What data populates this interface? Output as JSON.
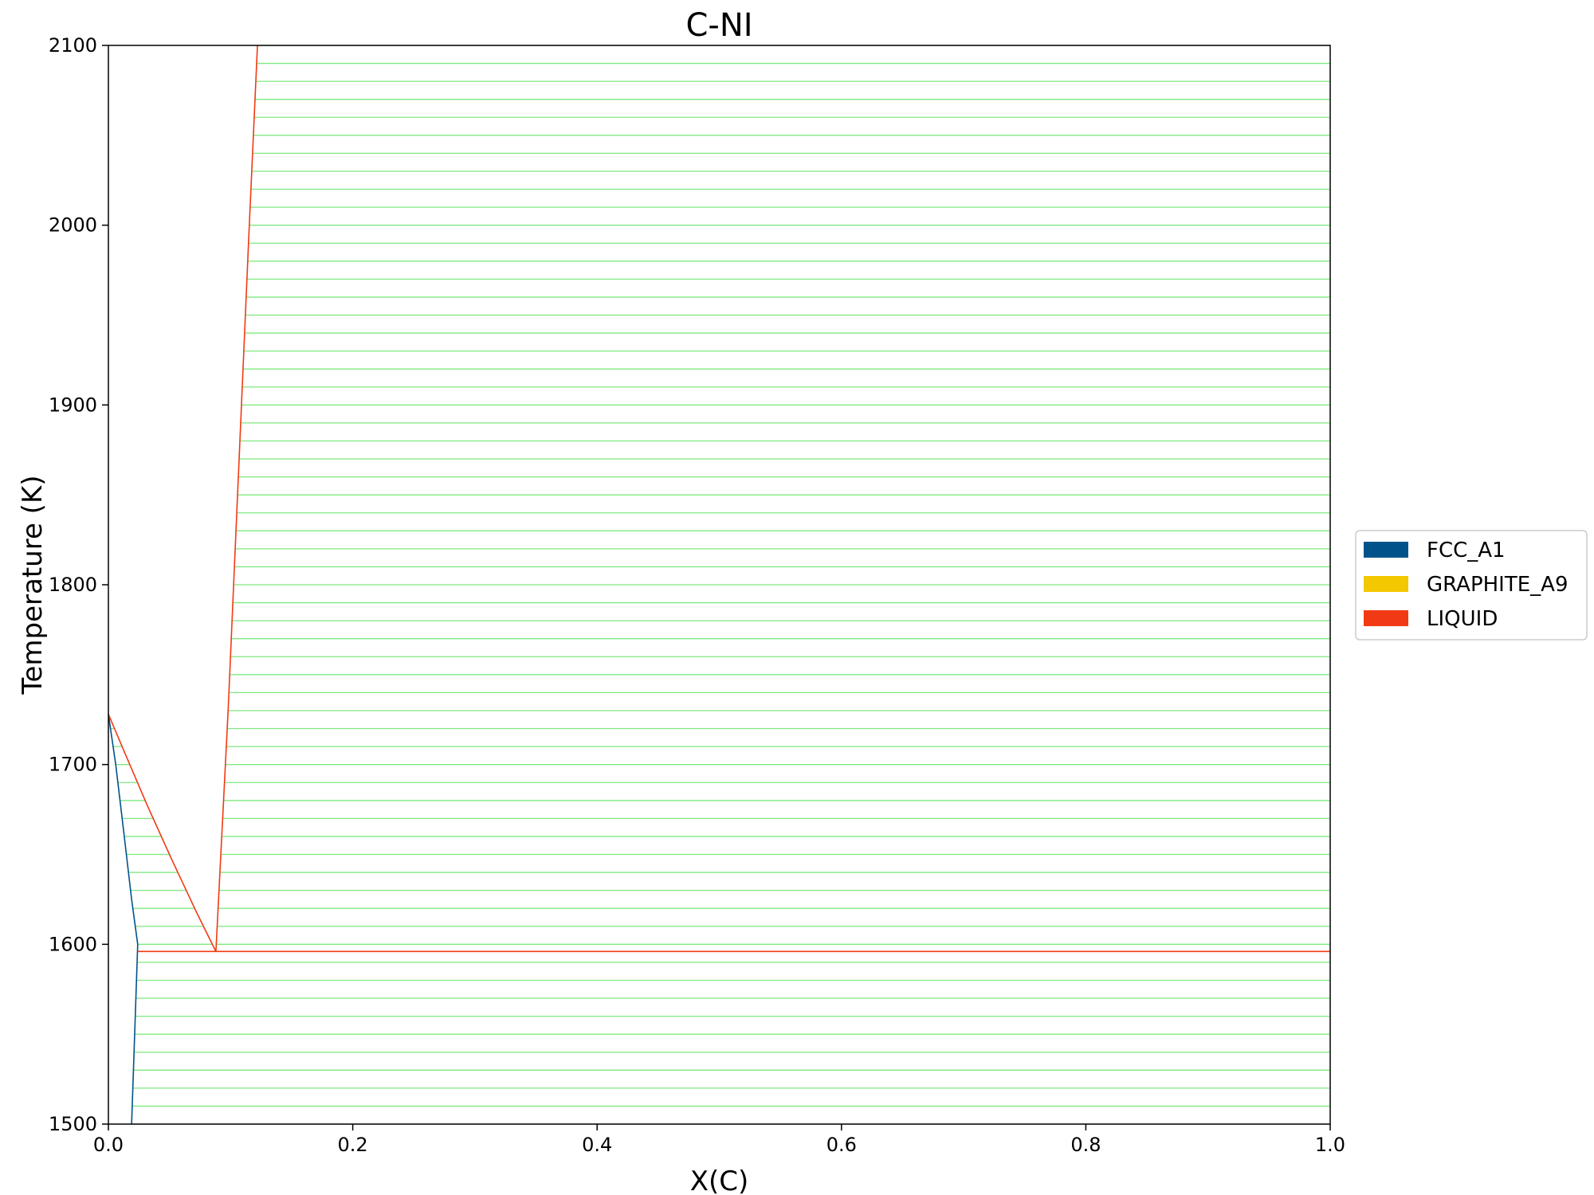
{
  "chart_data": {
    "type": "line",
    "title": "C-NI",
    "xlabel": "X(C)",
    "ylabel": "Temperature (K)",
    "xlim": [
      0.0,
      1.0
    ],
    "ylim": [
      1500,
      2100
    ],
    "x_ticks": [
      "0.0",
      "0.2",
      "0.4",
      "0.6",
      "0.8",
      "1.0"
    ],
    "y_ticks": [
      "1500",
      "1600",
      "1700",
      "1800",
      "1900",
      "2000",
      "2100"
    ],
    "grid": false,
    "legend_position": "right",
    "legend": [
      {
        "name": "FCC_A1",
        "color": "#00538a"
      },
      {
        "name": "GRAPHITE_A9",
        "color": "#f4c800"
      },
      {
        "name": "LIQUID",
        "color": "#f13a13"
      }
    ],
    "series": [
      {
        "name": "FCC_A1",
        "color": "#00538a",
        "x": [
          0.0,
          0.006,
          0.013,
          0.019,
          0.024,
          0.023,
          0.021,
          0.019
        ],
        "y": [
          1728,
          1700,
          1660,
          1625,
          1600,
          1580,
          1540,
          1500
        ]
      },
      {
        "name": "LIQUID",
        "color": "#f13a13",
        "x": [
          0.0,
          0.015,
          0.032,
          0.052,
          0.072,
          0.088
        ],
        "y": [
          1728,
          1704,
          1677,
          1647,
          1618,
          1596
        ]
      },
      {
        "name": "LIQUID",
        "color": "#f13a13",
        "x": [
          0.088,
          0.098,
          0.107,
          0.115,
          0.122
        ],
        "y": [
          1596,
          1730,
          1870,
          1995,
          2100
        ]
      },
      {
        "name": "LIQUID",
        "color": "#f13a13",
        "x": [
          0.024,
          1.0
        ],
        "y": [
          1596,
          1596
        ]
      }
    ],
    "tie_line_color": "#7fe87f",
    "tie_line_spacing_K": 10
  }
}
